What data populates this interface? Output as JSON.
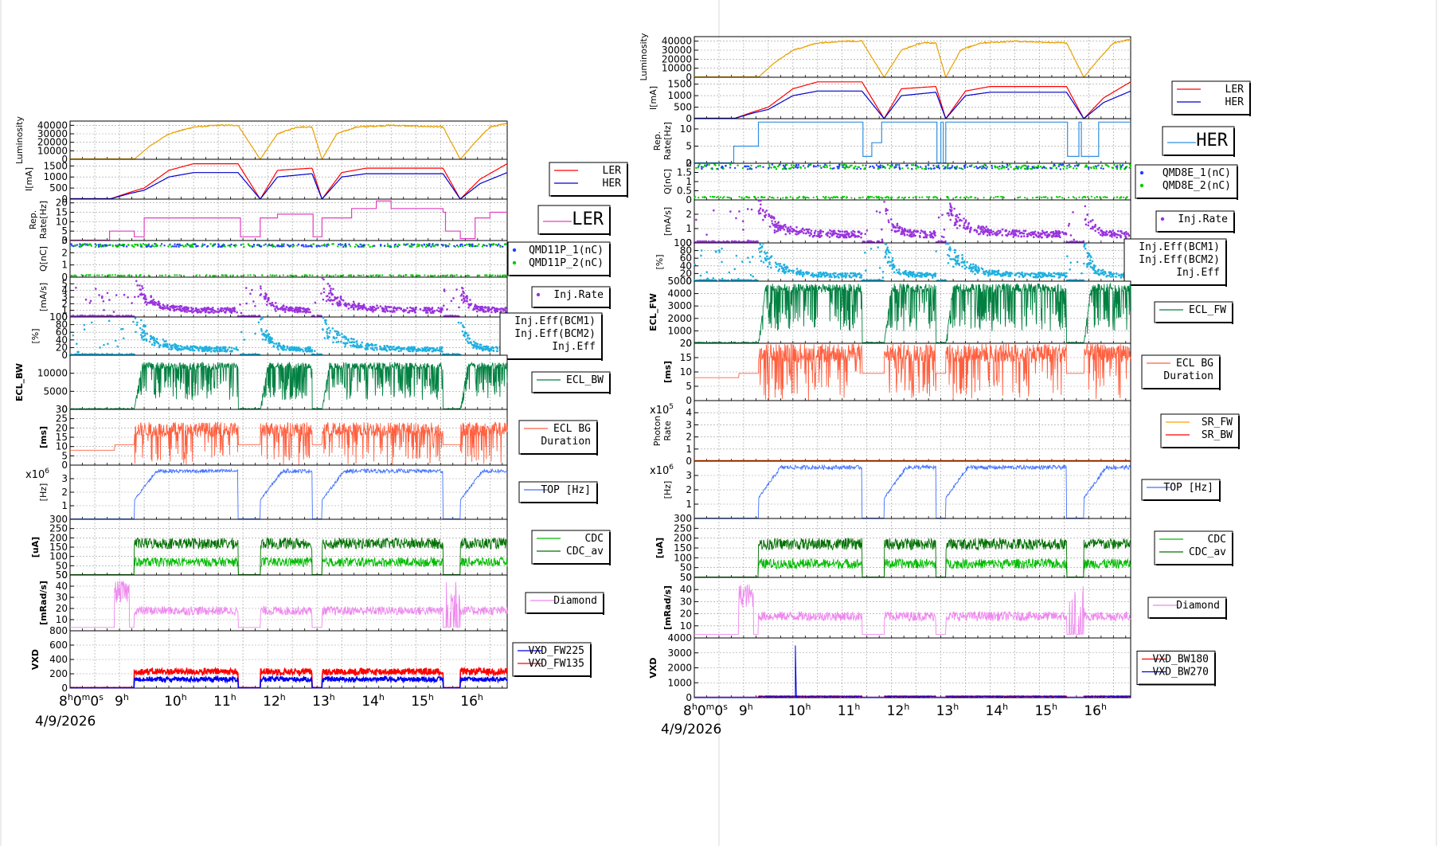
{
  "colors": {
    "lumi": "#e8a000",
    "ler": "#ff0000",
    "her": "#0000cc",
    "rep_ler": "#e040c0",
    "rep_her": "#3090e0",
    "q1": "#2040ff",
    "q2": "#00cc00",
    "inj": "#9933dd",
    "eff": "#20b0e0",
    "ecl_bw": "#008040",
    "ecl_fw": "#008040",
    "ecl_bg": "#ff6040",
    "top": "#4070ff",
    "cdc": "#00bb00",
    "cdc_av": "#007000",
    "diamond": "#ee88ee",
    "vxd_a": "#0000ee",
    "vxd_b": "#ff0000",
    "sr_fw": "#ffa000",
    "sr_bw": "#ff0000"
  },
  "left": {
    "date": "4/9/2026",
    "time_labels": [
      {
        "t": 8,
        "hh": "8",
        "mm": "0",
        "ss": "0"
      },
      {
        "t": 9,
        "hh": "9"
      },
      {
        "t": 10,
        "hh": "10"
      },
      {
        "t": 11,
        "hh": "11"
      },
      {
        "t": 12,
        "hh": "12"
      },
      {
        "t": 13,
        "hh": "13"
      },
      {
        "t": 14,
        "hh": "14"
      },
      {
        "t": 15,
        "hh": "15"
      },
      {
        "t": 16,
        "hh": "16"
      }
    ],
    "panels": [
      {
        "id": "lumi",
        "ylabel": "Luminosity",
        "ymin": 0,
        "ymax": 45000,
        "ticks": [
          "0",
          "10000",
          "20000",
          "30000",
          "40000"
        ],
        "tickvals": [
          0,
          10000,
          20000,
          30000,
          40000
        ],
        "legend": []
      },
      {
        "id": "current",
        "ylabel": "I[mA]",
        "ymin": 0,
        "ymax": 1800,
        "ticks": [
          "0",
          "500",
          "1000",
          "1500"
        ],
        "tickvals": [
          0,
          500,
          1000,
          1500
        ],
        "legend": [
          {
            "text": "LER",
            "color": "#ff0000",
            "kind": "line"
          },
          {
            "text": "HER",
            "color": "#0000cc",
            "kind": "line"
          }
        ]
      },
      {
        "id": "rep",
        "ylabel": "Rep.\nRate[Hz]",
        "ymin": 0,
        "ymax": 22,
        "ticks": [
          "0",
          "5",
          "10",
          "15",
          "20"
        ],
        "tickvals": [
          0,
          5,
          10,
          15,
          20
        ],
        "legend": [
          {
            "text": "LER",
            "color": "#e040c0",
            "kind": "line"
          }
        ],
        "big": true
      },
      {
        "id": "charge",
        "ylabel": "Q[nC]",
        "ymin": 0,
        "ymax": 3,
        "ticks": [
          "0",
          "1",
          "2",
          "3"
        ],
        "tickvals": [
          0,
          1,
          2,
          3
        ],
        "legend": [
          {
            "text": "QMD11P_1(nC)",
            "color": "#2040ff",
            "kind": "dot"
          },
          {
            "text": "QMD11P_2(nC)",
            "color": "#00cc00",
            "kind": "dot"
          }
        ]
      },
      {
        "id": "injrate",
        "ylabel": "[mA/s]",
        "ymin": 0,
        "ymax": 6,
        "ticks": [
          "0",
          "1",
          "2",
          "3",
          "4",
          "5"
        ],
        "tickvals": [
          0,
          1,
          2,
          3,
          4,
          5
        ],
        "legend": [
          {
            "text": "Inj.Rate",
            "color": "#9933dd",
            "kind": "dot"
          }
        ]
      },
      {
        "id": "eff",
        "ylabel": "[%]",
        "ymin": 0,
        "ymax": 100,
        "ticks": [
          "0",
          "20",
          "40",
          "60",
          "80",
          "100"
        ],
        "tickvals": [
          0,
          20,
          40,
          60,
          80,
          100
        ],
        "legend": [
          {
            "text": "Inj.Eff(BCM1)",
            "color": "#000000",
            "kind": "none"
          },
          {
            "text": "Inj.Eff(BCM2)",
            "color": "#000000",
            "kind": "none"
          },
          {
            "text": "Inj.Eff",
            "color": "#000000",
            "kind": "none"
          }
        ]
      },
      {
        "id": "ecl",
        "ylabel": "ECL_BW",
        "bold": true,
        "ymin": 0,
        "ymax": 15000,
        "ticks": [
          "0",
          "5000",
          "10000"
        ],
        "tickvals": [
          0,
          5000,
          10000
        ],
        "legend": [
          {
            "text": "ECL_BW",
            "color": "#008040",
            "kind": "line"
          }
        ]
      },
      {
        "id": "eclbg",
        "ylabel": "[ms]",
        "bold": true,
        "ymin": 0,
        "ymax": 30,
        "ticks": [
          "0",
          "5",
          "10",
          "15",
          "20",
          "25",
          "30"
        ],
        "tickvals": [
          0,
          5,
          10,
          15,
          20,
          25,
          30
        ],
        "legend": [
          {
            "text": "ECL BG",
            "color": "#ff6040",
            "kind": "line"
          },
          {
            "text": "Duration",
            "color": "#ff6040",
            "kind": "none"
          }
        ]
      },
      {
        "id": "top",
        "ylabel": "[Hz]",
        "ymin": 0,
        "ymax": 4,
        "ticks": [
          "1",
          "2",
          "3"
        ],
        "tickvals": [
          1,
          2,
          3
        ],
        "mult": "x10",
        "multexp": "6",
        "legend": [
          {
            "text": "TOP [Hz]",
            "color": "#4070ff",
            "kind": "line"
          }
        ]
      },
      {
        "id": "cdc",
        "ylabel": "[uA]",
        "bold": true,
        "ymin": 0,
        "ymax": 300,
        "ticks": [
          "0",
          "50",
          "100",
          "150",
          "200",
          "250",
          "300"
        ],
        "tickvals": [
          0,
          50,
          100,
          150,
          200,
          250,
          300
        ],
        "legend": [
          {
            "text": "CDC",
            "color": "#00bb00",
            "kind": "line"
          },
          {
            "text": "CDC_av",
            "color": "#007000",
            "kind": "line"
          }
        ]
      },
      {
        "id": "diamond",
        "ylabel": "[mRad/s]",
        "bold": true,
        "ymin": 0,
        "ymax": 50,
        "ticks": [
          "10",
          "20",
          "30",
          "40",
          "50"
        ],
        "tickvals": [
          10,
          20,
          30,
          40,
          50
        ],
        "legend": [
          {
            "text": "Diamond",
            "color": "#ee88ee",
            "kind": "line"
          }
        ]
      },
      {
        "id": "vxd",
        "ylabel": "VXD",
        "bold": true,
        "ymin": 0,
        "ymax": 800,
        "ticks": [
          "0",
          "200",
          "400",
          "600",
          "800"
        ],
        "tickvals": [
          0,
          200,
          400,
          600,
          800
        ],
        "legend": [
          {
            "text": "VXD_FW225",
            "color": "#0000ee",
            "kind": "line"
          },
          {
            "text": "VXD_FW135",
            "color": "#ff0000",
            "kind": "line"
          }
        ]
      }
    ]
  },
  "right": {
    "date": "4/9/2026",
    "time_labels": [
      {
        "t": 8,
        "hh": "8",
        "mm": "0",
        "ss": "0"
      },
      {
        "t": 9,
        "hh": "9"
      },
      {
        "t": 10,
        "hh": "10"
      },
      {
        "t": 11,
        "hh": "11"
      },
      {
        "t": 12,
        "hh": "12"
      },
      {
        "t": 13,
        "hh": "13"
      },
      {
        "t": 14,
        "hh": "14"
      },
      {
        "t": 15,
        "hh": "15"
      },
      {
        "t": 16,
        "hh": "16"
      }
    ],
    "panels": [
      {
        "id": "lumi",
        "ylabel": "Luminosity",
        "ymin": 0,
        "ymax": 45000,
        "ticks": [
          "0",
          "10000",
          "20000",
          "30000",
          "40000"
        ],
        "tickvals": [
          0,
          10000,
          20000,
          30000,
          40000
        ],
        "legend": []
      },
      {
        "id": "current",
        "ylabel": "I[mA]",
        "ymin": 0,
        "ymax": 1800,
        "ticks": [
          "0",
          "500",
          "1000",
          "1500"
        ],
        "tickvals": [
          0,
          500,
          1000,
          1500
        ],
        "legend": [
          {
            "text": "LER",
            "color": "#ff0000",
            "kind": "line"
          },
          {
            "text": "HER",
            "color": "#0000cc",
            "kind": "line"
          }
        ]
      },
      {
        "id": "rep",
        "ylabel": "Rep.\nRate[Hz]",
        "ymin": 0,
        "ymax": 13,
        "ticks": [
          "0",
          "5",
          "10"
        ],
        "tickvals": [
          0,
          5,
          10
        ],
        "legend": [
          {
            "text": "HER",
            "color": "#3090e0",
            "kind": "line"
          }
        ],
        "big": true
      },
      {
        "id": "charge",
        "ylabel": "Q[nC]",
        "ymin": 0,
        "ymax": 2,
        "ticks": [
          "0",
          "0.5",
          "1",
          "1.5",
          "2"
        ],
        "tickvals": [
          0,
          0.5,
          1,
          1.5,
          2
        ],
        "legend": [
          {
            "text": "QMD8E_1(nC)",
            "color": "#2040ff",
            "kind": "dot"
          },
          {
            "text": "QMD8E_2(nC)",
            "color": "#00cc00",
            "kind": "dot"
          }
        ]
      },
      {
        "id": "injrate",
        "ylabel": "[mA/s]",
        "ymin": 0,
        "ymax": 3,
        "ticks": [
          "0",
          "1",
          "2"
        ],
        "tickvals": [
          0,
          1,
          2
        ],
        "legend": [
          {
            "text": "Inj.Rate",
            "color": "#9933dd",
            "kind": "dot"
          }
        ]
      },
      {
        "id": "eff",
        "ylabel": "[%]",
        "ymin": 0,
        "ymax": 100,
        "ticks": [
          "0",
          "20",
          "40",
          "60",
          "80",
          "100"
        ],
        "tickvals": [
          0,
          20,
          40,
          60,
          80,
          100
        ],
        "legend": [
          {
            "text": "Inj.Eff(BCM1)",
            "color": "#000000",
            "kind": "none"
          },
          {
            "text": "Inj.Eff(BCM2)",
            "color": "#000000",
            "kind": "none"
          },
          {
            "text": "Inj.Eff",
            "color": "#000000",
            "kind": "none"
          }
        ]
      },
      {
        "id": "ecl",
        "ylabel": "ECL_FW",
        "bold": true,
        "ymin": 0,
        "ymax": 5000,
        "ticks": [
          "0",
          "1000",
          "2000",
          "3000",
          "4000",
          "5000"
        ],
        "tickvals": [
          0,
          1000,
          2000,
          3000,
          4000,
          5000
        ],
        "legend": [
          {
            "text": "ECL_FW",
            "color": "#008040",
            "kind": "line"
          }
        ]
      },
      {
        "id": "eclbg",
        "ylabel": "[ms]",
        "bold": true,
        "ymin": 0,
        "ymax": 20,
        "ticks": [
          "0",
          "5",
          "10",
          "15",
          "20"
        ],
        "tickvals": [
          0,
          5,
          10,
          15,
          20
        ],
        "legend": [
          {
            "text": "ECL BG",
            "color": "#ff6040",
            "kind": "line"
          },
          {
            "text": "Duration",
            "color": "#ff6040",
            "kind": "none"
          }
        ]
      },
      {
        "id": "photon",
        "ylabel": "Photon\nRate",
        "ymin": 0,
        "ymax": 5,
        "ticks": [
          "0",
          "1",
          "2",
          "3",
          "4"
        ],
        "tickvals": [
          0,
          1,
          2,
          3,
          4
        ],
        "mult": "x10",
        "multexp": "5",
        "legend": [
          {
            "text": "SR_FW",
            "color": "#ffa000",
            "kind": "line"
          },
          {
            "text": "SR_BW",
            "color": "#ff0000",
            "kind": "line"
          }
        ]
      },
      {
        "id": "top",
        "ylabel": "[Hz]",
        "ymin": 0,
        "ymax": 4,
        "ticks": [
          "1",
          "2",
          "3"
        ],
        "tickvals": [
          1,
          2,
          3
        ],
        "mult": "x10",
        "multexp": "6",
        "legend": [
          {
            "text": "TOP [Hz]",
            "color": "#4070ff",
            "kind": "line"
          }
        ]
      },
      {
        "id": "cdc",
        "ylabel": "[uA]",
        "bold": true,
        "ymin": 0,
        "ymax": 300,
        "ticks": [
          "0",
          "50",
          "100",
          "150",
          "200",
          "250",
          "300"
        ],
        "tickvals": [
          0,
          50,
          100,
          150,
          200,
          250,
          300
        ],
        "legend": [
          {
            "text": "CDC",
            "color": "#00bb00",
            "kind": "line"
          },
          {
            "text": "CDC_av",
            "color": "#007000",
            "kind": "line"
          }
        ]
      },
      {
        "id": "diamond",
        "ylabel": "[mRad/s]",
        "bold": true,
        "ymin": 0,
        "ymax": 50,
        "ticks": [
          "10",
          "20",
          "30",
          "40",
          "50"
        ],
        "tickvals": [
          10,
          20,
          30,
          40,
          50
        ],
        "legend": [
          {
            "text": "Diamond",
            "color": "#ee88ee",
            "kind": "line"
          }
        ]
      },
      {
        "id": "vxd",
        "ylabel": "VXD",
        "bold": true,
        "ymin": 0,
        "ymax": 4000,
        "ticks": [
          "0",
          "1000",
          "2000",
          "3000",
          "4000"
        ],
        "tickvals": [
          0,
          1000,
          2000,
          3000,
          4000
        ],
        "legend": [
          {
            "text": "VXD_BW180",
            "color": "#ff0000",
            "kind": "line"
          },
          {
            "text": "VXD_BW270",
            "color": "#0000ee",
            "kind": "line"
          }
        ]
      }
    ]
  },
  "chart_data": {
    "type": "line",
    "x_unit": "hour of day",
    "xlim": [
      8.0,
      16.85
    ],
    "beam_segments": [
      [
        9.3,
        11.4
      ],
      [
        11.85,
        12.9
      ],
      [
        13.1,
        15.55
      ],
      [
        15.9,
        16.85
      ]
    ],
    "series": [
      {
        "name": "Luminosity",
        "x": [
          8.0,
          9.3,
          9.6,
          10.0,
          10.5,
          11.0,
          11.4,
          11.85,
          12.2,
          12.6,
          12.9,
          13.1,
          13.4,
          13.8,
          14.5,
          15.0,
          15.55,
          15.9,
          16.2,
          16.5,
          16.85
        ],
        "values": [
          0,
          0,
          15000,
          30000,
          38000,
          40000,
          40000,
          0,
          30000,
          38000,
          38000,
          0,
          30000,
          38000,
          40000,
          39000,
          38000,
          0,
          20000,
          38000,
          42000
        ]
      },
      {
        "name": "LER",
        "x": [
          8.0,
          8.8,
          9.2,
          9.5,
          10.0,
          10.5,
          11.4,
          11.85,
          12.2,
          12.9,
          13.1,
          13.5,
          14.0,
          15.55,
          15.9,
          16.3,
          16.85
        ],
        "values": [
          0,
          0,
          300,
          500,
          1300,
          1600,
          1600,
          0,
          1300,
          1400,
          0,
          1200,
          1400,
          1400,
          0,
          900,
          1600
        ]
      },
      {
        "name": "HER",
        "x": [
          8.0,
          8.8,
          9.2,
          9.5,
          10.0,
          10.5,
          11.4,
          11.85,
          12.2,
          12.9,
          13.1,
          13.5,
          14.0,
          15.55,
          15.9,
          16.3,
          16.85
        ],
        "values": [
          0,
          0,
          250,
          400,
          1000,
          1200,
          1200,
          0,
          1000,
          1150,
          0,
          1000,
          1150,
          1150,
          0,
          700,
          1200
        ]
      }
    ]
  }
}
